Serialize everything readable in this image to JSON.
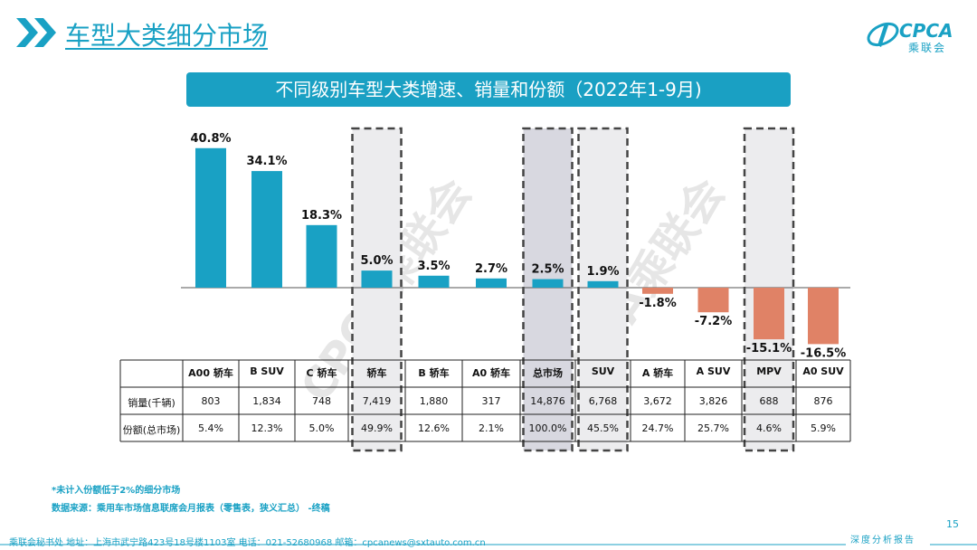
{
  "header": {
    "title": "车型大类细分市场",
    "logo_text": "CPCA",
    "logo_sub": "乘联会"
  },
  "subtitle": "不同级别车型大类增速、销量和份额（2022年1-9月)",
  "chart_data": {
    "type": "bar",
    "categories": [
      "A00 轿车",
      "B SUV",
      "C 轿车",
      "轿车",
      "B 轿车",
      "A0 轿车",
      "总市场",
      "SUV",
      "A 轿车",
      "A SUV",
      "MPV",
      "A0 SUV"
    ],
    "values": [
      40.8,
      34.1,
      18.3,
      5.0,
      3.5,
      2.7,
      2.5,
      1.9,
      -1.8,
      -7.2,
      -15.1,
      -16.5
    ],
    "value_labels": [
      "40.8%",
      "34.1%",
      "18.3%",
      "5.0%",
      "3.5%",
      "2.7%",
      "2.5%",
      "1.9%",
      "-1.8%",
      "-7.2%",
      "-15.1%",
      "-16.5%"
    ],
    "highlighted": [
      "轿车",
      "总市场",
      "SUV",
      "MPV"
    ],
    "colors": {
      "positive": "#19a1c4",
      "negative": "#e08266",
      "highlight_box": "#ececee",
      "total_box": "#d8d8e0"
    }
  },
  "table": {
    "row_labels": [
      "销量(千辆)",
      "份额(总市场)"
    ],
    "sales": [
      "803",
      "1,834",
      "748",
      "7,419",
      "1,880",
      "317",
      "14,876",
      "6,768",
      "3,672",
      "3,826",
      "688",
      "876"
    ],
    "share": [
      "5.4%",
      "12.3%",
      "5.0%",
      "49.9%",
      "12.6%",
      "2.1%",
      "100.0%",
      "45.5%",
      "24.7%",
      "25.7%",
      "4.6%",
      "5.9%"
    ]
  },
  "notes": {
    "note1": "*未计入份额低于2%的细分市场",
    "note2": "数据来源：乘用车市场信息联席会月报表（零售表，狭义汇总） -终稿"
  },
  "watermark": "CPCA乘联会",
  "footer": {
    "text": "乘联会秘书处   地址：上海市武宁路423号18号楼1103室  电话：021-52680968   邮箱：cpcanews@sxtauto.com.cn",
    "right": "深度分析报告",
    "page": "15"
  }
}
